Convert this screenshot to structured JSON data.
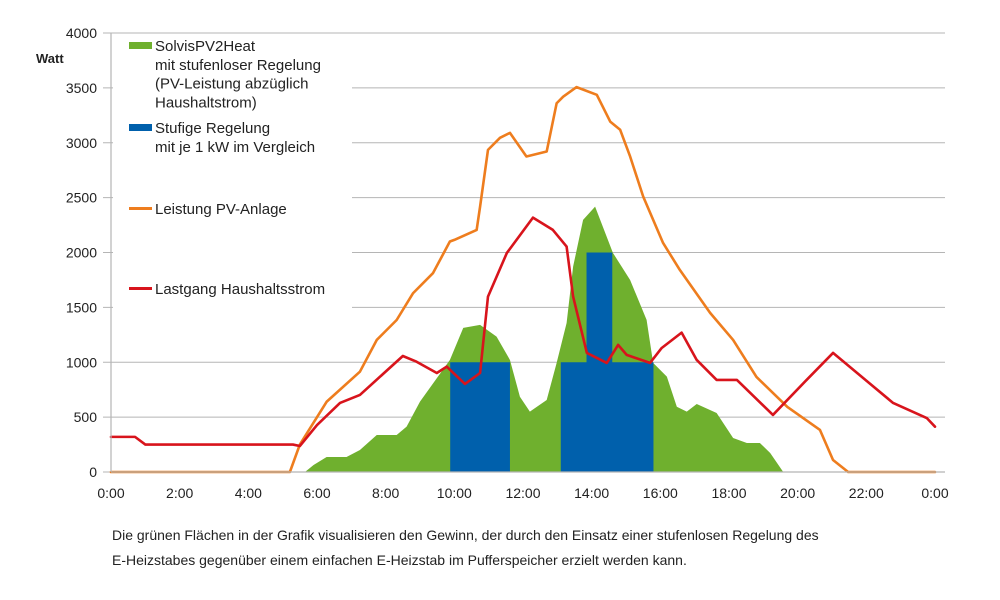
{
  "chart_data": {
    "type": "area",
    "ylabel": "Watt",
    "ylim": [
      0,
      4000
    ],
    "yticks": [
      "0",
      "500",
      "1000",
      "1500",
      "2000",
      "2500",
      "3000",
      "3500",
      "4000"
    ],
    "xlim": [
      0,
      24
    ],
    "xticks": [
      "0:00",
      "2:00",
      "4:00",
      "6:00",
      "8:00",
      "10:00",
      "12:00",
      "14:00",
      "16:00",
      "18:00",
      "20:00",
      "22:00",
      "0:00"
    ],
    "grid": true,
    "legend_position": "top-left",
    "colors": {
      "green": "#6fb02e",
      "blue": "#0060ac",
      "orange": "#ee7d1e",
      "red": "#d8141c",
      "grid": "#b5b5b5"
    },
    "legend": [
      {
        "key": "green",
        "lines": [
          "SolvisPV2Heat",
          "mit stufenloser Regelung",
          "(PV-Leistung abzüglich",
          "Haushaltstrom)"
        ]
      },
      {
        "key": "blue",
        "lines": [
          "Stufige Regelung",
          "mit  je 1 kW im Vergleich"
        ]
      },
      {
        "key": "orange",
        "lines": [
          "Leistung PV-Anlage"
        ]
      },
      {
        "key": "red",
        "lines": [
          "Lastgang Haushaltsstrom"
        ]
      }
    ],
    "series": [
      {
        "key": "green",
        "kind": "area",
        "x": [
          5.65,
          5.9,
          6.28,
          6.86,
          7.25,
          7.74,
          8.32,
          8.61,
          9.0,
          9.87,
          10.26,
          10.75,
          11.23,
          11.62,
          11.91,
          12.2,
          12.69,
          12.98,
          13.27,
          13.46,
          13.75,
          14.1,
          14.62,
          15.12,
          15.6,
          15.79,
          16.19,
          16.48,
          16.77,
          17.06,
          17.64,
          18.12,
          18.52,
          18.9,
          19.2,
          19.58
        ],
        "y": [
          0,
          64,
          137,
          137,
          200,
          337,
          337,
          413,
          641,
          1021,
          1313,
          1340,
          1233,
          1021,
          686,
          550,
          656,
          994,
          1358,
          1872,
          2297,
          2418,
          1996,
          1750,
          1386,
          994,
          869,
          595,
          550,
          620,
          538,
          310,
          264,
          264,
          173,
          0
        ]
      },
      {
        "key": "blue",
        "kind": "steps",
        "blocks": [
          {
            "from": 9.88,
            "to": 11.62,
            "value": 1000
          },
          {
            "from": 13.1,
            "to": 15.8,
            "value": 1000
          },
          {
            "from": 13.85,
            "to": 14.6,
            "value": 2000
          }
        ]
      },
      {
        "key": "orange",
        "kind": "line",
        "x": [
          0,
          5.21,
          5.5,
          6.28,
          7.25,
          7.74,
          8.32,
          8.8,
          9.38,
          9.87,
          10.0,
          10.65,
          10.75,
          10.98,
          11.33,
          11.62,
          12.1,
          12.69,
          12.98,
          13.17,
          13.56,
          14.15,
          14.54,
          14.83,
          15.12,
          15.5,
          16.08,
          16.57,
          17.45,
          18.12,
          18.8,
          19.7,
          20.65,
          21.03,
          21.47,
          24
        ],
        "y": [
          0,
          0,
          250,
          640,
          914,
          1203,
          1385,
          1630,
          1813,
          2100,
          2115,
          2206,
          2418,
          2935,
          3045,
          3090,
          2875,
          2920,
          3360,
          3420,
          3507,
          3437,
          3193,
          3118,
          2875,
          2510,
          2087,
          1840,
          1450,
          1203,
          866,
          593,
          383,
          109,
          0,
          0
        ]
      },
      {
        "key": "red",
        "kind": "line",
        "x": [
          0,
          0.7,
          1.0,
          5.3,
          5.5,
          6.0,
          6.67,
          7.25,
          8.5,
          8.9,
          9.49,
          9.78,
          10.31,
          10.75,
          10.98,
          11.53,
          12.29,
          12.87,
          13.27,
          13.46,
          13.86,
          14.44,
          14.77,
          15.02,
          15.7,
          16.04,
          16.62,
          17.06,
          17.64,
          18.23,
          19.28,
          20.26,
          21.03,
          22.78,
          23.76,
          24
        ],
        "y": [
          320,
          320,
          250,
          250,
          237,
          428,
          629,
          702,
          1057,
          1005,
          902,
          960,
          802,
          902,
          1598,
          1996,
          2318,
          2206,
          2054,
          1598,
          1085,
          994,
          1158,
          1067,
          994,
          1130,
          1270,
          1021,
          839,
          839,
          520,
          839,
          1085,
          629,
          492,
          413
        ]
      }
    ]
  },
  "caption": {
    "line1": "Die grünen Flächen in der Grafik visualisieren den Gewinn, der durch den Einsatz einer stufenlosen Regelung des",
    "line2": "E-Heizstabes gegenüber einem einfachen E-Heizstab im Pufferspeicher erzielt werden kann."
  }
}
